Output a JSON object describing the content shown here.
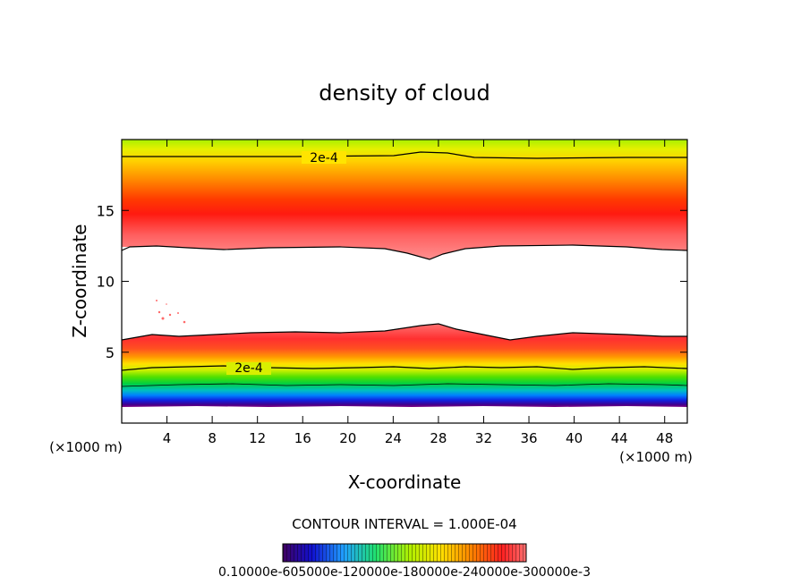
{
  "chart_data": {
    "type": "heatmap",
    "title": "density of cloud",
    "xlabel": "X-coordinate",
    "ylabel": "Z-coordinate",
    "x_unit": "(×1000 m)",
    "xlim": [
      0,
      50
    ],
    "ylim": [
      0,
      20
    ],
    "x_ticks": [
      "4",
      "8",
      "12",
      "16",
      "20",
      "24",
      "28",
      "32",
      "36",
      "40",
      "44",
      "48"
    ],
    "y_ticks": [
      "5",
      "10",
      "15"
    ],
    "contour_labels": [
      "2e-4",
      "2e-4"
    ],
    "contour_interval_text": "CONTOUR INTERVAL = 1.000E-04",
    "colorbar_ticks_text": "0.10000e-605000e-120000e-180000e-240000e-300000e-3",
    "layers": [
      {
        "z_bottom": 0.0,
        "z_top": 1.3,
        "density": null
      },
      {
        "z_bottom": 1.3,
        "z_top": 1.7,
        "density": 0.00012
      },
      {
        "z_bottom": 1.7,
        "z_top": 2.3,
        "density": 0.00016
      },
      {
        "z_bottom": 2.3,
        "z_top": 3.0,
        "density": 0.00018
      },
      {
        "z_bottom": 3.0,
        "z_top": 3.8,
        "density": 0.0002
      },
      {
        "z_bottom": 3.8,
        "z_top": 4.8,
        "density": 0.00024
      },
      {
        "z_bottom": 4.8,
        "z_top": 6.2,
        "density": 0.00029
      },
      {
        "z_bottom": 6.2,
        "z_top": 12.3,
        "density": null
      },
      {
        "z_bottom": 12.3,
        "z_top": 15.0,
        "density": 0.0003
      },
      {
        "z_bottom": 15.0,
        "z_top": 17.0,
        "density": 0.00027
      },
      {
        "z_bottom": 17.0,
        "z_top": 18.7,
        "density": 0.00023
      },
      {
        "z_bottom": 18.7,
        "z_top": 20.0,
        "density": 0.00019
      }
    ]
  },
  "colors": {
    "background": "#ffffff",
    "contour_line": "#000000"
  }
}
